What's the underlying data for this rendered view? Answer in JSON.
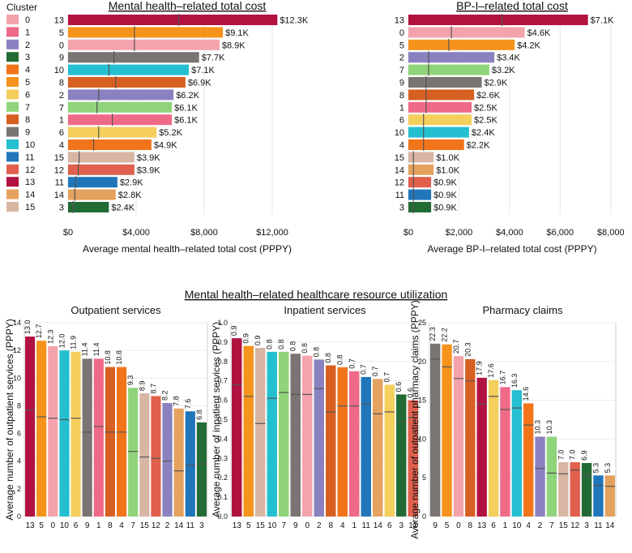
{
  "legend": {
    "title": "Cluster",
    "clusters": [
      "0",
      "1",
      "2",
      "3",
      "4",
      "5",
      "6",
      "7",
      "8",
      "9",
      "10",
      "11",
      "12",
      "13",
      "14",
      "15"
    ],
    "colors": {
      "0": "#f4a3ac",
      "1": "#ef6a88",
      "2": "#8a82c0",
      "3": "#236b35",
      "4": "#f2741a",
      "5": "#f6931c",
      "6": "#f4cf5c",
      "7": "#8fd47a",
      "8": "#d75f22",
      "9": "#7a7472",
      "10": "#24bfd0",
      "11": "#2176ba",
      "12": "#e0604d",
      "13": "#b1123f",
      "14": "#e5a25e",
      "15": "#d8b6a4"
    }
  },
  "section_title": "Mental health–related healthcare resource utilization",
  "chart_data": [
    {
      "id": "mh_cost",
      "type": "bar",
      "orientation": "horizontal",
      "title": "Mental health–related total cost",
      "xlabel": "Average mental health–related total cost (PPPY)",
      "xlim": [
        0,
        14000
      ],
      "xticks": [
        0,
        4000,
        8000,
        12000
      ],
      "xtick_labels": [
        "$0",
        "$4,000",
        "$8,000",
        "$12,000"
      ],
      "categories": [
        "13",
        "5",
        "0",
        "9",
        "10",
        "8",
        "2",
        "7",
        "1",
        "6",
        "4",
        "15",
        "12",
        "11",
        "14",
        "3"
      ],
      "values": [
        12300,
        9100,
        8900,
        7700,
        7100,
        6900,
        6200,
        6100,
        6100,
        5200,
        4900,
        3900,
        3900,
        2900,
        2800,
        2400
      ],
      "labels": [
        "$12.3K",
        "$9.1K",
        "$8.9K",
        "$7.7K",
        "$7.1K",
        "$6.9K",
        "$6.2K",
        "$6.1K",
        "$6.1K",
        "$5.2K",
        "$4.9K",
        "$3.9K",
        "$3.9K",
        "$2.9K",
        "$2.8K",
        "$2.4K"
      ],
      "medians": [
        6500,
        3900,
        3900,
        2700,
        2400,
        2800,
        1800,
        1700,
        2600,
        1800,
        1500,
        650,
        600,
        450,
        400,
        300
      ]
    },
    {
      "id": "bp_cost",
      "type": "bar",
      "orientation": "horizontal",
      "title": "BP-I–related total cost",
      "xlabel": "Average BP-I–related total cost (PPPY)",
      "xlim": [
        0,
        8200
      ],
      "xticks": [
        0,
        2000,
        4000,
        6000,
        8000
      ],
      "xtick_labels": [
        "$0",
        "$2,000",
        "$4,000",
        "$6,000",
        "$8,000"
      ],
      "categories": [
        "13",
        "0",
        "5",
        "2",
        "7",
        "9",
        "8",
        "1",
        "6",
        "10",
        "4",
        "15",
        "14",
        "12",
        "11",
        "3"
      ],
      "values": [
        7100,
        4600,
        4200,
        3400,
        3200,
        2900,
        2600,
        2500,
        2500,
        2400,
        2200,
        1000,
        1000,
        900,
        900,
        900
      ],
      "labels": [
        "$7.1K",
        "$4.6K",
        "$4.2K",
        "$3.4K",
        "$3.2K",
        "$2.9K",
        "$2.6K",
        "$2.5K",
        "$2.5K",
        "$2.4K",
        "$2.2K",
        "$1.0K",
        "$1.0K",
        "$0.9K",
        "$0.9K",
        "$0.9K"
      ],
      "medians": [
        3700,
        1700,
        1600,
        800,
        800,
        700,
        700,
        700,
        600,
        600,
        600,
        200,
        200,
        200,
        200,
        200
      ]
    },
    {
      "id": "outpatient",
      "type": "bar",
      "orientation": "vertical",
      "title": "Outpatient services",
      "ylabel": "Average number of outpatient services (PPPY)",
      "ylim": [
        0,
        14
      ],
      "yticks": [
        0,
        2,
        4,
        6,
        8,
        10,
        12,
        14
      ],
      "categories": [
        "13",
        "5",
        "0",
        "10",
        "6",
        "9",
        "1",
        "8",
        "4",
        "7",
        "15",
        "12",
        "2",
        "14",
        "11",
        "3"
      ],
      "values": [
        13.0,
        12.7,
        12.3,
        12.0,
        11.9,
        11.4,
        11.4,
        10.8,
        10.8,
        9.3,
        8.9,
        8.7,
        8.2,
        7.8,
        7.6,
        6.8
      ],
      "labels": [
        "13.0",
        "12.7",
        "12.3",
        "12.0",
        "11.9",
        "11.4",
        "11.4",
        "10.8",
        "10.8",
        "9.3",
        "8.9",
        "8.7",
        "8.2",
        "7.8",
        "7.6",
        "6.8"
      ],
      "medians": [
        7.7,
        7.2,
        7.1,
        7.0,
        7.1,
        6.1,
        6.5,
        6.1,
        6.1,
        4.7,
        4.3,
        4.2,
        4.0,
        3.3,
        3.7,
        3.8
      ]
    },
    {
      "id": "inpatient",
      "type": "bar",
      "orientation": "vertical",
      "title": "Inpatient services",
      "ylabel": "Average number of inpatient services (PPPY)",
      "ylim": [
        0,
        1.0
      ],
      "yticks": [
        0,
        0.1,
        0.2,
        0.3,
        0.4,
        0.5,
        0.6,
        0.7,
        0.8,
        0.9,
        1.0
      ],
      "ytick_labels": [
        "0.0",
        "0.1",
        "0.2",
        "0.3",
        "0.4",
        "0.5",
        "0.6",
        "0.7",
        "0.8",
        "0.9",
        "1.0"
      ],
      "categories": [
        "13",
        "5",
        "15",
        "10",
        "7",
        "9",
        "0",
        "2",
        "8",
        "4",
        "1",
        "11",
        "14",
        "6",
        "3",
        "12"
      ],
      "values": [
        0.92,
        0.88,
        0.87,
        0.85,
        0.85,
        0.84,
        0.83,
        0.81,
        0.78,
        0.77,
        0.75,
        0.72,
        0.71,
        0.68,
        0.63,
        0.6
      ],
      "labels": [
        "0.9",
        "0.9",
        "0.9",
        "0.8",
        "0.8",
        "0.8",
        "0.8",
        "0.8",
        "0.8",
        "0.8",
        "0.7",
        "0.7",
        "0.7",
        "0.7",
        "0.6",
        "0.6"
      ],
      "medians": [
        0.68,
        0.62,
        0.48,
        0.61,
        0.64,
        0.63,
        0.63,
        0.66,
        0.54,
        0.57,
        0.57,
        0.58,
        0.53,
        0.54,
        0.49,
        0.51
      ]
    },
    {
      "id": "pharmacy",
      "type": "bar",
      "orientation": "vertical",
      "title": "Pharmacy claims",
      "ylabel": "Average number of outpatient pharmacy claims (PPPY)",
      "ylim": [
        0,
        25
      ],
      "yticks": [
        0,
        5,
        10,
        15,
        20,
        25
      ],
      "categories": [
        "9",
        "5",
        "0",
        "8",
        "13",
        "6",
        "1",
        "10",
        "4",
        "2",
        "7",
        "15",
        "12",
        "3",
        "11",
        "14"
      ],
      "values": [
        22.3,
        22.2,
        20.7,
        20.3,
        17.9,
        17.6,
        16.7,
        16.3,
        14.6,
        10.3,
        10.3,
        7.0,
        7.0,
        6.9,
        5.3,
        5.3
      ],
      "labels": [
        "22.3",
        "22.2",
        "20.7",
        "20.3",
        "17.9",
        "17.6",
        "16.7",
        "16.3",
        "14.6",
        "10.3",
        "10.3",
        "7.0",
        "7.0",
        "6.9",
        "5.3",
        "5.3"
      ],
      "medians": [
        20.3,
        19.3,
        17.8,
        17.5,
        14.5,
        15.5,
        13.8,
        14.0,
        11.8,
        6.2,
        5.6,
        5.5,
        6.0,
        5.3,
        4.0,
        3.9
      ]
    }
  ]
}
